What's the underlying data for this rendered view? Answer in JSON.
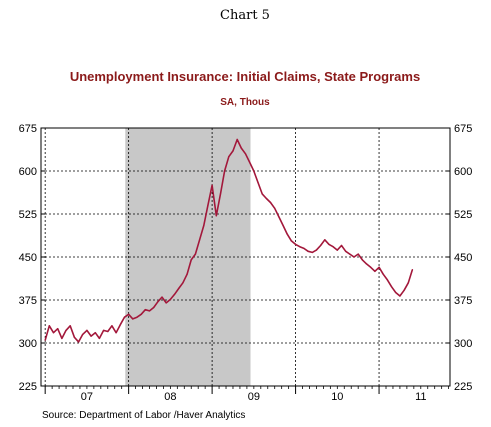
{
  "chart_data": {
    "type": "line",
    "header": "Chart 5",
    "title": "Unemployment Insurance: Initial Claims, State Programs",
    "subtitle": "SA, Thous",
    "source": "Source:  Department of Labor /Haver Analytics",
    "ylim": [
      225,
      675
    ],
    "y_ticks": [
      225,
      300,
      375,
      450,
      525,
      600,
      675
    ],
    "x_range": [
      2006.95,
      2011.85
    ],
    "x_tick_labels": [
      "07",
      "08",
      "09",
      "10",
      "11"
    ],
    "year_boundaries": [
      2007,
      2008,
      2009,
      2010,
      2011
    ],
    "recession": {
      "start": 2007.96,
      "end": 2009.46
    },
    "grid": true,
    "colors": {
      "line": "#a3183b",
      "title": "#8b1a1a",
      "recession": "#c8c8c8"
    },
    "series": [
      {
        "x": [
          2007.0,
          2007.05,
          2007.1,
          2007.15,
          2007.2,
          2007.25,
          2007.3,
          2007.35,
          2007.4,
          2007.45,
          2007.5,
          2007.55,
          2007.6,
          2007.65,
          2007.7,
          2007.75,
          2007.8,
          2007.85,
          2007.9,
          2007.95,
          2008.0,
          2008.05,
          2008.1,
          2008.15,
          2008.2,
          2008.25,
          2008.3,
          2008.35,
          2008.4,
          2008.45,
          2008.5,
          2008.55,
          2008.6,
          2008.65,
          2008.7,
          2008.75,
          2008.8,
          2008.85,
          2008.9,
          2008.95,
          2009.0,
          2009.05,
          2009.1,
          2009.15,
          2009.2,
          2009.25,
          2009.3,
          2009.35,
          2009.4,
          2009.45,
          2009.5,
          2009.55,
          2009.6,
          2009.65,
          2009.7,
          2009.75,
          2009.8,
          2009.85,
          2009.9,
          2009.95,
          2010.0,
          2010.05,
          2010.1,
          2010.15,
          2010.2,
          2010.25,
          2010.3,
          2010.35,
          2010.4,
          2010.45,
          2010.5,
          2010.55,
          2010.6,
          2010.65,
          2010.7,
          2010.75,
          2010.8,
          2010.85,
          2010.9,
          2010.95,
          2011.0,
          2011.05,
          2011.1,
          2011.15,
          2011.2,
          2011.25,
          2011.3,
          2011.35,
          2011.4
        ],
        "values": [
          305,
          330,
          318,
          325,
          308,
          322,
          330,
          310,
          302,
          315,
          322,
          312,
          318,
          308,
          322,
          320,
          330,
          318,
          332,
          345,
          350,
          342,
          345,
          350,
          358,
          356,
          362,
          372,
          380,
          370,
          376,
          385,
          395,
          405,
          420,
          445,
          455,
          480,
          505,
          540,
          575,
          522,
          560,
          600,
          625,
          635,
          655,
          640,
          630,
          615,
          600,
          580,
          560,
          552,
          545,
          535,
          520,
          505,
          490,
          478,
          472,
          468,
          465,
          460,
          458,
          462,
          470,
          480,
          472,
          468,
          462,
          470,
          460,
          455,
          450,
          455,
          445,
          438,
          432,
          425,
          432,
          420,
          410,
          398,
          388,
          382,
          392,
          405,
          428
        ]
      }
    ]
  }
}
